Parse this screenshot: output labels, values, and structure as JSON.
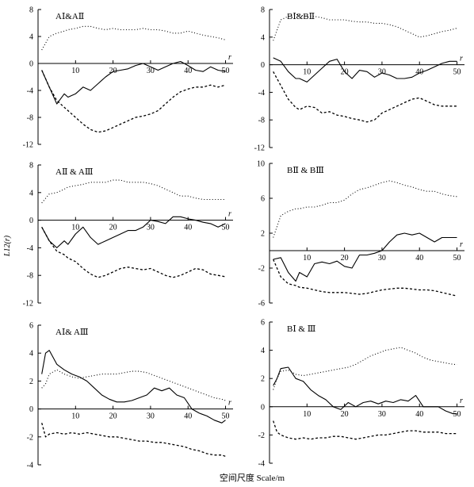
{
  "figure": {
    "xlabel": "空间尺度 Scale/m",
    "ylabel": "L12(r)",
    "r_label": "r"
  },
  "chart_data": [
    {
      "type": "line",
      "title": "AⅠ&AⅡ",
      "xlim": [
        0,
        52
      ],
      "ylim": [
        -12,
        8
      ],
      "yticks": [
        8,
        4,
        0,
        -4,
        -8,
        -12
      ],
      "xticks": [
        10,
        20,
        30,
        40,
        50
      ],
      "x": [
        1,
        3,
        5,
        7,
        8,
        10,
        12,
        14,
        16,
        18,
        20,
        22,
        24,
        26,
        28,
        30,
        32,
        34,
        36,
        38,
        40,
        42,
        44,
        46,
        48,
        50
      ],
      "series": [
        {
          "style": "solid",
          "values": [
            -1.0,
            -3.5,
            -6.0,
            -4.5,
            -5.0,
            -4.5,
            -3.5,
            -4.0,
            -3.0,
            -2.0,
            -1.2,
            -1.0,
            -0.8,
            -0.3,
            0.0,
            -0.5,
            -1.0,
            -0.5,
            0.0,
            0.3,
            -0.3,
            -1.0,
            -1.2,
            -0.5,
            -1.0,
            -1.2
          ]
        },
        {
          "style": "dotted",
          "values": [
            2.0,
            4.0,
            4.5,
            4.8,
            5.0,
            5.2,
            5.5,
            5.5,
            5.2,
            5.0,
            5.2,
            5.0,
            5.0,
            5.0,
            5.2,
            5.0,
            5.0,
            4.8,
            4.5,
            4.5,
            4.8,
            4.5,
            4.2,
            4.0,
            3.8,
            3.5
          ]
        },
        {
          "style": "dashed",
          "values": [
            -1.0,
            -3.5,
            -5.5,
            -6.5,
            -7.0,
            -8.0,
            -9.0,
            -9.8,
            -10.2,
            -10.0,
            -9.5,
            -9.0,
            -8.5,
            -8.0,
            -7.8,
            -7.5,
            -7.0,
            -6.0,
            -5.0,
            -4.2,
            -3.8,
            -3.5,
            -3.5,
            -3.2,
            -3.5,
            -3.2
          ]
        }
      ]
    },
    {
      "type": "line",
      "title": "BⅠ&BⅡ",
      "xlim": [
        0,
        52
      ],
      "ylim": [
        -12,
        8
      ],
      "yticks": [
        8,
        4,
        0,
        -4,
        -8,
        -12
      ],
      "xticks": [
        10,
        20,
        30,
        40,
        50
      ],
      "x": [
        1,
        3,
        5,
        7,
        8,
        10,
        12,
        14,
        16,
        18,
        20,
        22,
        24,
        26,
        28,
        30,
        32,
        34,
        36,
        38,
        40,
        42,
        44,
        46,
        48,
        50
      ],
      "series": [
        {
          "style": "solid",
          "values": [
            1.0,
            0.5,
            -1.0,
            -2.0,
            -2.0,
            -2.5,
            -1.5,
            -0.5,
            0.5,
            0.8,
            -1.0,
            -2.0,
            -0.8,
            -1.0,
            -1.8,
            -1.2,
            -1.5,
            -2.0,
            -2.0,
            -1.8,
            -1.2,
            -0.8,
            -0.3,
            0.2,
            0.5,
            0.5
          ]
        },
        {
          "style": "dotted",
          "values": [
            3.5,
            6.5,
            7.0,
            7.3,
            7.2,
            7.0,
            7.0,
            6.8,
            6.5,
            6.5,
            6.5,
            6.3,
            6.2,
            6.2,
            6.0,
            6.0,
            5.8,
            5.5,
            5.0,
            4.5,
            4.0,
            4.2,
            4.5,
            4.8,
            5.0,
            5.3
          ]
        },
        {
          "style": "dashed",
          "values": [
            -1.0,
            -3.0,
            -5.0,
            -6.2,
            -6.5,
            -6.0,
            -6.2,
            -7.0,
            -6.8,
            -7.3,
            -7.5,
            -7.8,
            -8.0,
            -8.3,
            -8.0,
            -7.0,
            -6.5,
            -6.0,
            -5.5,
            -5.0,
            -4.8,
            -5.3,
            -5.8,
            -6.0,
            -6.0,
            -6.0
          ]
        }
      ]
    },
    {
      "type": "line",
      "title": "AⅡ & AⅢ",
      "xlim": [
        0,
        52
      ],
      "ylim": [
        -12,
        8
      ],
      "yticks": [
        8,
        4,
        0,
        -4,
        -8,
        -12
      ],
      "xticks": [
        10,
        20,
        30,
        40,
        50
      ],
      "x": [
        1,
        3,
        5,
        7,
        8,
        10,
        12,
        14,
        16,
        18,
        20,
        22,
        24,
        26,
        28,
        30,
        32,
        34,
        36,
        38,
        40,
        42,
        44,
        46,
        48,
        50
      ],
      "series": [
        {
          "style": "solid",
          "values": [
            -1.0,
            -3.0,
            -4.0,
            -3.0,
            -3.5,
            -2.0,
            -1.0,
            -2.5,
            -3.5,
            -3.0,
            -2.5,
            -2.0,
            -1.5,
            -1.5,
            -1.0,
            0.0,
            -0.2,
            -0.5,
            0.5,
            0.5,
            0.2,
            0.0,
            -0.3,
            -0.5,
            -1.0,
            -0.5
          ]
        },
        {
          "style": "dotted",
          "values": [
            2.5,
            3.8,
            4.0,
            4.5,
            4.8,
            5.0,
            5.2,
            5.5,
            5.5,
            5.5,
            5.8,
            5.8,
            5.5,
            5.5,
            5.5,
            5.3,
            5.0,
            4.5,
            4.0,
            3.5,
            3.5,
            3.2,
            3.0,
            3.0,
            3.0,
            3.0
          ]
        },
        {
          "style": "dashed",
          "values": [
            -1.0,
            -3.0,
            -4.5,
            -5.0,
            -5.5,
            -6.0,
            -7.0,
            -7.8,
            -8.3,
            -8.0,
            -7.5,
            -7.0,
            -6.8,
            -7.0,
            -7.2,
            -7.0,
            -7.5,
            -8.0,
            -8.3,
            -8.0,
            -7.5,
            -7.0,
            -7.2,
            -7.8,
            -8.0,
            -8.2
          ]
        }
      ]
    },
    {
      "type": "line",
      "title": "BⅡ & BⅢ",
      "xlim": [
        0,
        52
      ],
      "ylim": [
        -6,
        10
      ],
      "yticks": [
        10,
        6,
        2,
        -2,
        -6
      ],
      "xticks": [
        10,
        20,
        30,
        40,
        50
      ],
      "x": [
        1,
        3,
        5,
        7,
        8,
        10,
        12,
        14,
        16,
        18,
        20,
        22,
        24,
        26,
        28,
        30,
        32,
        34,
        36,
        38,
        40,
        42,
        44,
        46,
        48,
        50
      ],
      "series": [
        {
          "style": "solid",
          "values": [
            -1.0,
            -0.8,
            -2.5,
            -3.5,
            -2.5,
            -3.0,
            -1.5,
            -1.3,
            -1.5,
            -1.2,
            -1.8,
            -2.0,
            -0.5,
            -0.5,
            -0.3,
            0.0,
            1.0,
            1.8,
            2.0,
            1.8,
            2.0,
            1.5,
            1.0,
            1.5,
            1.5,
            1.5
          ]
        },
        {
          "style": "dotted",
          "values": [
            1.5,
            4.0,
            4.5,
            4.8,
            4.8,
            5.0,
            5.0,
            5.2,
            5.5,
            5.5,
            5.8,
            6.5,
            7.0,
            7.2,
            7.5,
            7.8,
            8.0,
            7.8,
            7.5,
            7.3,
            7.0,
            6.8,
            6.8,
            6.5,
            6.3,
            6.2
          ]
        },
        {
          "style": "dashed",
          "values": [
            -1.0,
            -3.0,
            -3.8,
            -4.0,
            -4.2,
            -4.3,
            -4.5,
            -4.7,
            -4.8,
            -4.8,
            -4.8,
            -4.9,
            -5.0,
            -4.9,
            -4.7,
            -4.5,
            -4.4,
            -4.3,
            -4.3,
            -4.4,
            -4.5,
            -4.5,
            -4.6,
            -4.8,
            -5.0,
            -5.2
          ]
        }
      ]
    },
    {
      "type": "line",
      "title": "AⅠ& AⅢ",
      "xlim": [
        0,
        52
      ],
      "ylim": [
        -4,
        6
      ],
      "yticks": [
        6,
        4,
        2,
        0,
        -2,
        -4
      ],
      "xticks": [
        10,
        20,
        30,
        40,
        50
      ],
      "x": [
        1,
        2,
        3,
        5,
        7,
        9,
        11,
        13,
        15,
        17,
        19,
        21,
        23,
        25,
        27,
        29,
        31,
        33,
        35,
        37,
        39,
        41,
        43,
        45,
        47,
        49,
        50
      ],
      "series": [
        {
          "style": "solid",
          "values": [
            2.5,
            4.0,
            4.2,
            3.2,
            2.8,
            2.5,
            2.3,
            2.0,
            1.5,
            1.0,
            0.7,
            0.5,
            0.5,
            0.6,
            0.8,
            1.0,
            1.5,
            1.3,
            1.5,
            1.0,
            0.8,
            0.0,
            -0.3,
            -0.5,
            -0.8,
            -1.0,
            -0.8
          ]
        },
        {
          "style": "dotted",
          "values": [
            1.5,
            1.8,
            2.5,
            2.8,
            2.5,
            2.3,
            2.2,
            2.3,
            2.4,
            2.5,
            2.5,
            2.5,
            2.6,
            2.7,
            2.7,
            2.6,
            2.4,
            2.2,
            2.0,
            1.8,
            1.6,
            1.4,
            1.2,
            1.0,
            0.8,
            0.7,
            0.6
          ]
        },
        {
          "style": "dashed",
          "values": [
            -1.0,
            -2.0,
            -1.8,
            -1.7,
            -1.8,
            -1.7,
            -1.8,
            -1.7,
            -1.8,
            -1.9,
            -2.0,
            -2.0,
            -2.1,
            -2.2,
            -2.3,
            -2.3,
            -2.4,
            -2.4,
            -2.5,
            -2.6,
            -2.7,
            -2.9,
            -3.0,
            -3.2,
            -3.3,
            -3.3,
            -3.4
          ]
        }
      ]
    },
    {
      "type": "line",
      "title": "BⅠ & Ⅲ",
      "xlim": [
        0,
        52
      ],
      "ylim": [
        -4,
        6
      ],
      "yticks": [
        6,
        4,
        2,
        0,
        -2,
        -4
      ],
      "xticks": [
        10,
        20,
        30,
        40,
        50
      ],
      "x": [
        1,
        2,
        3,
        5,
        7,
        9,
        11,
        13,
        15,
        17,
        19,
        21,
        23,
        25,
        27,
        29,
        31,
        33,
        35,
        37,
        39,
        41,
        43,
        45,
        47,
        49,
        50
      ],
      "series": [
        {
          "style": "solid",
          "values": [
            1.5,
            2.0,
            2.7,
            2.8,
            2.0,
            1.8,
            1.2,
            0.8,
            0.5,
            0.0,
            -0.2,
            0.3,
            0.0,
            0.3,
            0.4,
            0.2,
            0.4,
            0.3,
            0.5,
            0.4,
            0.8,
            0.0,
            0.0,
            0.0,
            -0.3,
            -0.5,
            -0.5
          ]
        },
        {
          "style": "dotted",
          "values": [
            1.2,
            2.0,
            2.5,
            2.6,
            2.3,
            2.2,
            2.3,
            2.4,
            2.5,
            2.6,
            2.7,
            2.8,
            3.0,
            3.3,
            3.6,
            3.8,
            4.0,
            4.1,
            4.2,
            4.0,
            3.8,
            3.5,
            3.3,
            3.2,
            3.1,
            3.0,
            3.0
          ]
        },
        {
          "style": "dashed",
          "values": [
            -1.0,
            -1.8,
            -2.0,
            -2.2,
            -2.3,
            -2.2,
            -2.3,
            -2.2,
            -2.2,
            -2.1,
            -2.1,
            -2.2,
            -2.3,
            -2.2,
            -2.1,
            -2.0,
            -2.0,
            -1.9,
            -1.8,
            -1.7,
            -1.7,
            -1.8,
            -1.8,
            -1.8,
            -1.9,
            -1.9,
            -1.9
          ]
        }
      ]
    }
  ]
}
